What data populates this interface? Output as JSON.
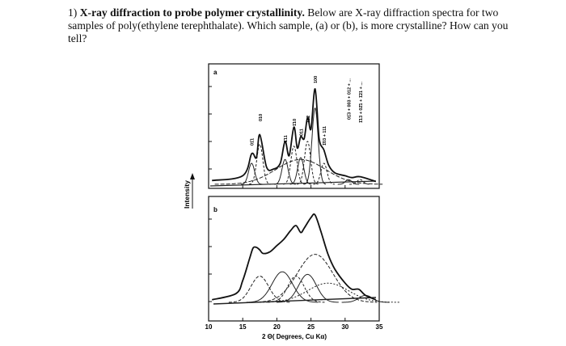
{
  "question": {
    "number": "1)",
    "title": "X-ray diffraction to probe polymer crystallinity.",
    "body": "Below are X-ray diffraction spectra for two samples of poly(ethylene terephthalate).  Which sample, (a) or (b), is more crystalline? How can you tell?"
  },
  "chart_data": {
    "type": "line",
    "ylabel": "Intensity",
    "xlabel": "2 Θ( Degrees, Cu Kα)",
    "xlim": [
      10,
      35
    ],
    "x_ticks": [
      10,
      15,
      20,
      25,
      30,
      35
    ],
    "panels": [
      {
        "label": "a",
        "peaks": [
          {
            "label": "01̄1",
            "x": 16.3
          },
          {
            "label": "010",
            "x": 17.5
          },
          {
            "label": "1̄11",
            "x": 21.2
          },
          {
            "label": "1̄10",
            "x": 22.5
          },
          {
            "label": "011",
            "x": 23.5
          },
          {
            "label": "1̄12",
            "x": 24.5
          },
          {
            "label": "100",
            "x": 25.6
          },
          {
            "label": "1̄03 + 111",
            "x": 26.9
          },
          {
            "label": "01̄3 + 003 + 012 + ...",
            "x": 30.5
          },
          {
            "label": "1̄13 + 02̄1 + 1̄21 + ...",
            "x": 32.2
          }
        ],
        "total_curve": {
          "x": [
            10.5,
            15,
            16.3,
            17,
            17.5,
            18.5,
            19.5,
            20.5,
            21.2,
            21.8,
            22.5,
            23.0,
            23.5,
            24.0,
            24.5,
            25.0,
            25.6,
            26.2,
            26.9,
            27.6,
            28.5,
            30,
            31,
            32.2,
            34.5
          ],
          "y": [
            0.04,
            0.09,
            0.32,
            0.28,
            0.52,
            0.18,
            0.16,
            0.22,
            0.45,
            0.3,
            0.6,
            0.38,
            0.5,
            0.48,
            0.7,
            0.58,
            1.0,
            0.48,
            0.36,
            0.2,
            0.12,
            0.09,
            0.07,
            0.08,
            0.03
          ]
        }
      },
      {
        "label": "b",
        "total_curve": {
          "x": [
            10.5,
            14,
            15,
            16,
            16.5,
            17,
            17.5,
            18,
            19,
            20,
            21,
            22,
            22.8,
            23.5,
            24.0,
            25.0,
            25.6,
            26.5,
            27.5,
            28.5,
            30,
            31,
            32,
            33,
            34.5
          ],
          "y": [
            0.03,
            0.1,
            0.25,
            0.5,
            0.62,
            0.63,
            0.6,
            0.56,
            0.58,
            0.65,
            0.72,
            0.82,
            0.88,
            0.8,
            0.85,
            0.97,
            1.0,
            0.8,
            0.55,
            0.38,
            0.22,
            0.15,
            0.15,
            0.08,
            0.03
          ]
        }
      }
    ]
  }
}
